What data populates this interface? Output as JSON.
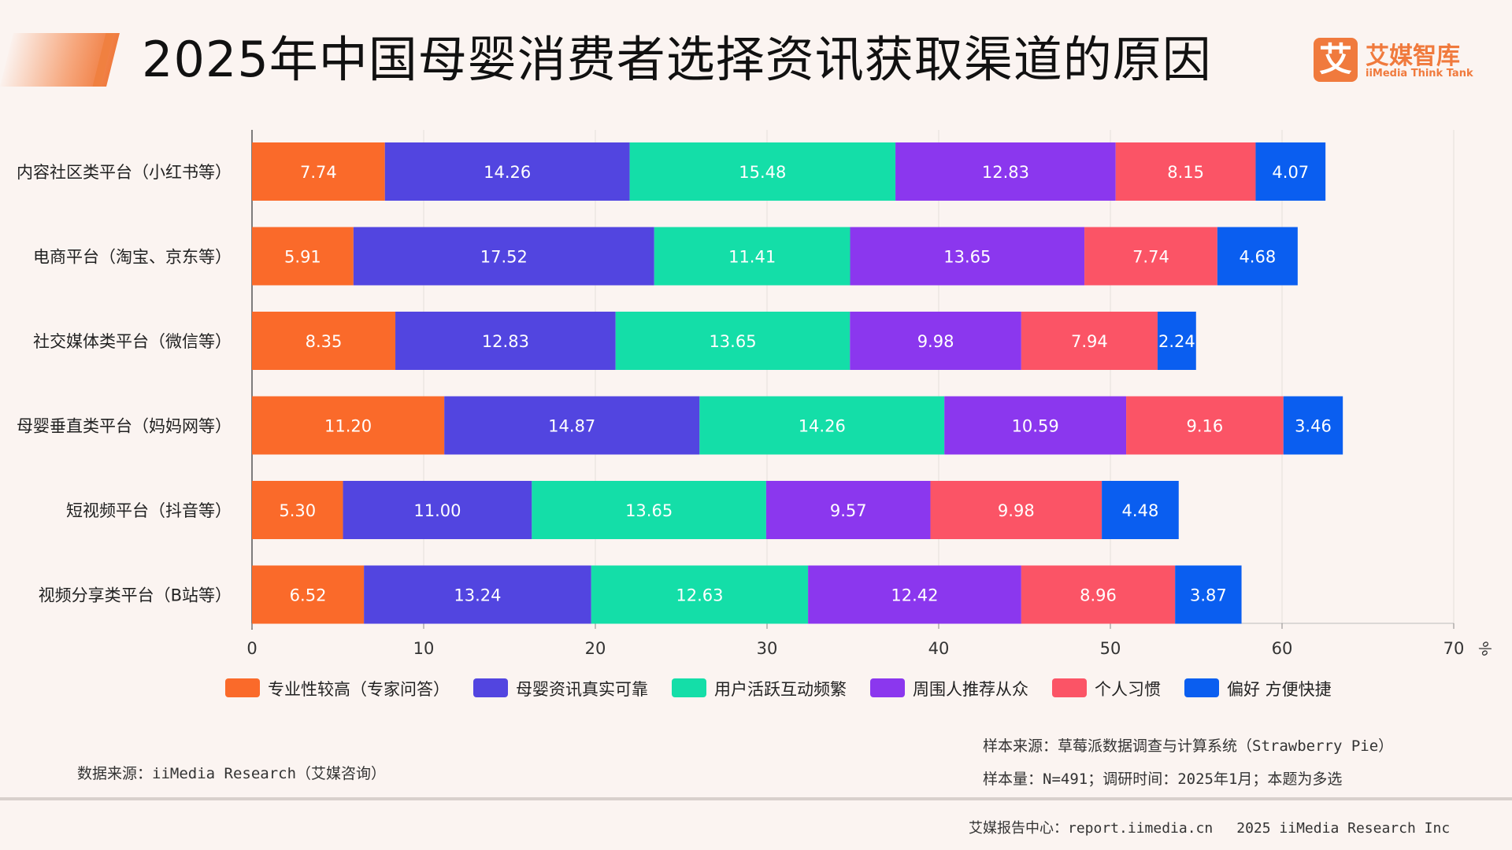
{
  "header": {
    "title": "2025年中国母婴消费者选择资讯获取渠道的原因"
  },
  "logo": {
    "cn": "艾媒智库",
    "en": "iiMedia Think Tank",
    "mark": "艾"
  },
  "colors": {
    "title_accent": "#f07a3d",
    "series": [
      "#fa6a2a",
      "#5245e0",
      "#14dea8",
      "#8b37ee",
      "#fb5466",
      "#0a5ef0"
    ]
  },
  "chart_data": {
    "type": "bar",
    "orientation": "horizontal",
    "stacked": true,
    "categories": [
      "内容社区类平台（小红书等）",
      "电商平台（淘宝、京东等）",
      "社交媒体类平台（微信等）",
      "母婴垂直类平台（妈妈网等）",
      "短视频平台（抖音等）",
      "视频分享类平台（B站等）"
    ],
    "series": [
      {
        "name": "专业性较高（专家问答）",
        "values": [
          "7.74",
          "5.91",
          "8.35",
          "11.20",
          "5.30",
          "6.52"
        ]
      },
      {
        "name": "母婴资讯真实可靠",
        "values": [
          "14.26",
          "17.52",
          "12.83",
          "14.87",
          "11.00",
          "13.24"
        ]
      },
      {
        "name": "用户活跃互动频繁",
        "values": [
          "15.48",
          "11.41",
          "13.65",
          "14.26",
          "13.65",
          "12.63"
        ]
      },
      {
        "name": "周围人推荐从众",
        "values": [
          "12.83",
          "13.65",
          "9.98",
          "10.59",
          "9.57",
          "12.42"
        ]
      },
      {
        "name": "个人习惯",
        "values": [
          "8.15",
          "7.74",
          "7.94",
          "9.16",
          "9.98",
          "8.96"
        ]
      },
      {
        "name": "偏好 方便快捷",
        "values": [
          "4.07",
          "4.68",
          "2.24",
          "3.46",
          "4.48",
          "3.87"
        ]
      }
    ],
    "xlim": [
      0,
      70
    ],
    "xticks": [
      "0",
      "10",
      "20",
      "30",
      "40",
      "50",
      "60",
      "70"
    ],
    "unit": "%",
    "legend_position": "bottom",
    "grid": true
  },
  "source": {
    "left": "数据来源：iiMedia Research（艾媒咨询）",
    "sample_source": "样本来源：草莓派数据调查与计算系统（Strawberry Pie）",
    "sample_info": "样本量：N=491；调研时间：2025年1月；本题为多选"
  },
  "footer": {
    "center": "艾媒报告中心：report.iimedia.cn",
    "copyright": "2025 iiMedia Research Inc"
  }
}
